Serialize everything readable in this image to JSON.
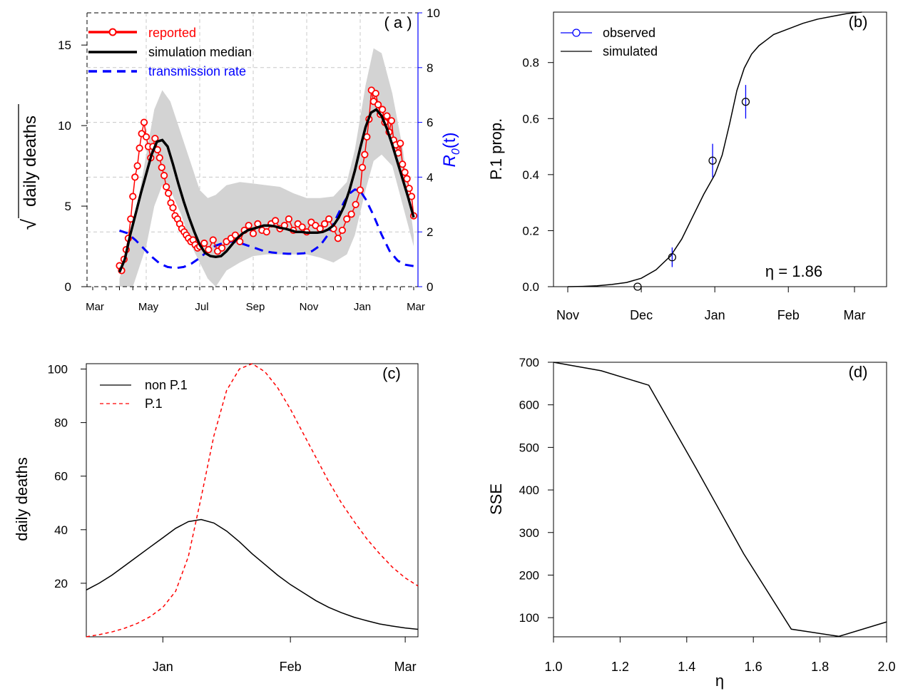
{
  "chart_data": [
    {
      "panel_label": "( a )",
      "type": "line",
      "title": "",
      "ylabel": "daily deaths",
      "ylabel_sqrt_symbol": "√",
      "y2label": "R₀(t)",
      "y2label_parts": {
        "base": "R",
        "sub": "0",
        "rest": "(t)"
      },
      "ylim": [
        0,
        17
      ],
      "y2lim": [
        0,
        10
      ],
      "x_month_range": [
        0,
        12
      ],
      "grid": true,
      "legend_position": "top-left",
      "x_ticks": [
        {
          "label": "Mar",
          "x": 0
        },
        {
          "label": "May",
          "x": 2
        },
        {
          "label": "Jul",
          "x": 4
        },
        {
          "label": "Sep",
          "x": 6
        },
        {
          "label": "Nov",
          "x": 8
        },
        {
          "label": "Jan",
          "x": 10
        },
        {
          "label": "Mar",
          "x": 12
        }
      ],
      "y_ticks": [
        0,
        5,
        10,
        15
      ],
      "y2_ticks": [
        0,
        2,
        4,
        6,
        8,
        10
      ],
      "legend": [
        {
          "label": "reported",
          "color": "#ff0000",
          "style": "line-points"
        },
        {
          "label": "simulation median",
          "color": "#000000",
          "style": "solid"
        },
        {
          "label": "transmission rate",
          "color": "#0000ff",
          "style": "dashed"
        }
      ],
      "series": [
        {
          "name": "simulation median",
          "axis": "left",
          "color": "#000000",
          "x": [
            1.0,
            1.2,
            1.4,
            1.6,
            1.8,
            2.0,
            2.2,
            2.4,
            2.6,
            2.8,
            3.0,
            3.2,
            3.4,
            3.6,
            3.8,
            4.0,
            4.2,
            4.4,
            4.6,
            4.8,
            5.0,
            5.2,
            5.4,
            5.6,
            5.8,
            6.0,
            6.2,
            6.4,
            6.6,
            6.8,
            7.0,
            7.2,
            7.4,
            7.6,
            7.8,
            8.0,
            8.2,
            8.4,
            8.6,
            8.8,
            9.0,
            9.2,
            9.4,
            9.6,
            9.8,
            10.0,
            10.2,
            10.4,
            10.6,
            10.8,
            11.0,
            11.2,
            11.4,
            11.6,
            11.8,
            12.0
          ],
          "values": [
            0.9,
            1.7,
            3.2,
            4.5,
            5.8,
            7.0,
            8.2,
            9.0,
            9.1,
            8.7,
            7.6,
            6.4,
            5.3,
            4.3,
            3.4,
            2.6,
            2.1,
            1.9,
            1.85,
            1.9,
            2.2,
            2.6,
            3.0,
            3.3,
            3.5,
            3.6,
            3.7,
            3.8,
            3.8,
            3.75,
            3.65,
            3.6,
            3.5,
            3.4,
            3.4,
            3.35,
            3.35,
            3.35,
            3.4,
            3.55,
            3.8,
            4.3,
            5.0,
            6.0,
            7.2,
            8.6,
            9.9,
            10.8,
            11.0,
            10.6,
            9.8,
            8.8,
            7.7,
            6.6,
            5.5,
            4.3
          ]
        },
        {
          "name": "transmission rate",
          "axis": "right",
          "color": "#0000ff",
          "x": [
            1.0,
            1.3,
            1.6,
            1.9,
            2.2,
            2.5,
            2.8,
            3.1,
            3.4,
            3.7,
            4.0,
            4.3,
            4.6,
            4.9,
            5.2,
            5.5,
            5.8,
            6.1,
            6.4,
            6.7,
            7.0,
            7.3,
            7.6,
            7.9,
            8.2,
            8.5,
            8.8,
            9.1,
            9.4,
            9.6,
            9.8,
            10.0,
            10.2,
            10.5,
            10.8,
            11.1,
            11.4,
            11.7,
            12.0
          ],
          "values": [
            2.05,
            1.95,
            1.7,
            1.4,
            1.1,
            0.85,
            0.72,
            0.68,
            0.72,
            0.85,
            1.05,
            1.3,
            1.5,
            1.6,
            1.65,
            1.6,
            1.5,
            1.4,
            1.3,
            1.25,
            1.22,
            1.2,
            1.2,
            1.22,
            1.3,
            1.5,
            1.9,
            2.5,
            3.1,
            3.4,
            3.55,
            3.5,
            3.2,
            2.6,
            1.9,
            1.3,
            0.95,
            0.8,
            0.75
          ]
        }
      ],
      "reported": {
        "color": "#ff0000",
        "x": [
          1.0,
          1.08,
          1.17,
          1.25,
          1.33,
          1.42,
          1.5,
          1.58,
          1.67,
          1.75,
          1.83,
          1.92,
          2.0,
          2.08,
          2.17,
          2.25,
          2.33,
          2.42,
          2.5,
          2.58,
          2.67,
          2.75,
          2.83,
          2.92,
          3.0,
          3.08,
          3.17,
          3.25,
          3.33,
          3.42,
          3.5,
          3.58,
          3.67,
          3.75,
          3.83,
          3.92,
          4.0,
          4.17,
          4.33,
          4.5,
          4.67,
          4.83,
          5.0,
          5.17,
          5.33,
          5.5,
          5.67,
          5.83,
          6.0,
          6.17,
          6.33,
          6.5,
          6.67,
          6.83,
          7.0,
          7.17,
          7.33,
          7.5,
          7.67,
          7.83,
          8.0,
          8.17,
          8.33,
          8.5,
          8.67,
          8.83,
          9.0,
          9.17,
          9.33,
          9.5,
          9.67,
          9.83,
          10.0,
          10.08,
          10.17,
          10.25,
          10.33,
          10.42,
          10.5,
          10.58,
          10.67,
          10.75,
          10.83,
          10.92,
          11.0,
          11.08,
          11.17,
          11.25,
          11.33,
          11.42,
          11.5,
          11.58,
          11.67,
          11.75,
          11.83,
          11.92,
          12.0
        ],
        "values": [
          1.3,
          1.0,
          1.7,
          2.3,
          3.0,
          4.2,
          5.6,
          6.8,
          7.5,
          8.6,
          9.5,
          10.2,
          9.3,
          8.7,
          8.0,
          8.7,
          9.2,
          8.5,
          8.0,
          7.4,
          6.9,
          6.2,
          5.8,
          5.2,
          4.9,
          4.4,
          4.2,
          3.9,
          3.6,
          3.4,
          3.2,
          3.0,
          2.8,
          2.9,
          2.6,
          2.4,
          2.5,
          2.7,
          2.3,
          2.9,
          2.2,
          2.4,
          2.8,
          3.0,
          3.2,
          2.8,
          3.5,
          3.8,
          3.3,
          3.9,
          3.5,
          3.4,
          3.9,
          4.1,
          3.6,
          3.8,
          4.2,
          3.5,
          3.9,
          3.7,
          3.4,
          4.0,
          3.8,
          3.6,
          3.9,
          4.2,
          3.6,
          3.0,
          3.5,
          4.2,
          4.5,
          5.1,
          6.0,
          7.4,
          8.2,
          9.3,
          10.4,
          12.2,
          11.5,
          12.0,
          11.3,
          10.7,
          11.0,
          10.2,
          10.6,
          9.6,
          10.3,
          9.1,
          8.8,
          8.3,
          8.9,
          7.6,
          7.1,
          6.7,
          6.1,
          5.6,
          4.4
        ]
      },
      "band": {
        "color": "#d3d3d3",
        "x": [
          1.0,
          1.5,
          2.0,
          2.3,
          2.6,
          2.9,
          3.3,
          3.7,
          4.0,
          4.3,
          4.6,
          5.0,
          5.5,
          6.0,
          6.5,
          7.0,
          7.5,
          8.0,
          8.5,
          9.0,
          9.5,
          9.8,
          10.2,
          10.5,
          10.8,
          11.2,
          11.6,
          12.0
        ],
        "upper": [
          0.5,
          3.5,
          8.2,
          11.0,
          12.2,
          11.5,
          9.5,
          7.5,
          6.0,
          5.5,
          5.7,
          6.3,
          6.5,
          6.4,
          6.3,
          6.2,
          5.8,
          5.5,
          5.5,
          5.6,
          6.5,
          8.5,
          12.5,
          14.8,
          14.5,
          12.0,
          8.5,
          3.2
        ],
        "lower": [
          0.0,
          0.0,
          2.5,
          5.0,
          6.3,
          6.0,
          4.5,
          2.5,
          1.5,
          0.5,
          0.0,
          1.0,
          1.5,
          1.9,
          2.0,
          2.0,
          2.0,
          2.0,
          1.8,
          1.5,
          2.0,
          3.2,
          6.0,
          7.8,
          8.2,
          7.5,
          5.0,
          2.5
        ]
      }
    },
    {
      "panel_label": "(b)",
      "type": "line",
      "title": "",
      "ylabel": "P.1 prop.",
      "xlabel": "",
      "x_month_range": [
        0,
        4.2
      ],
      "ylim": [
        0,
        0.98
      ],
      "grid": false,
      "legend_position": "top-left",
      "x_ticks": [
        {
          "label": "Nov",
          "x": 0
        },
        {
          "label": "Dec",
          "x": 1
        },
        {
          "label": "Jan",
          "x": 2
        },
        {
          "label": "Feb",
          "x": 3
        },
        {
          "label": "Mar",
          "x": 3.9
        }
      ],
      "y_ticks": [
        0.0,
        0.2,
        0.4,
        0.6,
        0.8
      ],
      "y_tick_labels": [
        "0.0",
        "0.2",
        "0.4",
        "0.6",
        "0.8"
      ],
      "annotation": "η = 1.86",
      "legend": [
        {
          "label": "observed",
          "color": "#0000ff",
          "style": "point-errorbar"
        },
        {
          "label": "simulated",
          "color": "#000000",
          "style": "solid"
        }
      ],
      "series": [
        {
          "name": "simulated",
          "color": "#000000",
          "x": [
            0.0,
            0.2,
            0.4,
            0.6,
            0.8,
            1.0,
            1.2,
            1.4,
            1.55,
            1.7,
            1.85,
            2.0,
            2.1,
            2.2,
            2.3,
            2.4,
            2.5,
            2.6,
            2.7,
            2.8,
            3.0,
            3.2,
            3.4,
            3.6,
            3.8,
            4.0
          ],
          "values": [
            0.0,
            0.001,
            0.003,
            0.008,
            0.015,
            0.03,
            0.06,
            0.11,
            0.17,
            0.25,
            0.33,
            0.4,
            0.47,
            0.58,
            0.7,
            0.78,
            0.83,
            0.86,
            0.88,
            0.9,
            0.92,
            0.94,
            0.955,
            0.965,
            0.975,
            0.98
          ]
        }
      ],
      "observed": [
        {
          "x": 0.95,
          "y": 0.0,
          "lo": 0.0,
          "hi": 0.0
        },
        {
          "x": 1.42,
          "y": 0.105,
          "lo": 0.07,
          "hi": 0.14
        },
        {
          "x": 1.97,
          "y": 0.45,
          "lo": 0.39,
          "hi": 0.51
        },
        {
          "x": 2.42,
          "y": 0.66,
          "lo": 0.6,
          "hi": 0.72
        }
      ]
    },
    {
      "panel_label": "(c)",
      "type": "line",
      "title": "",
      "ylabel": "daily deaths",
      "xlabel": "",
      "x_month_range": [
        -0.6,
        2.0
      ],
      "ylim": [
        0,
        102
      ],
      "grid": false,
      "legend_position": "top-left",
      "x_ticks": [
        {
          "label": "Jan",
          "x": 0
        },
        {
          "label": "Feb",
          "x": 1
        },
        {
          "label": "Mar",
          "x": 1.9
        }
      ],
      "y_ticks": [
        20,
        40,
        60,
        80,
        100
      ],
      "legend": [
        {
          "label": "non P.1",
          "color": "#000000",
          "style": "solid"
        },
        {
          "label": "P.1",
          "color": "#ff0000",
          "style": "dashed"
        }
      ],
      "series": [
        {
          "name": "non P.1",
          "color": "#000000",
          "x": [
            -0.6,
            -0.5,
            -0.4,
            -0.3,
            -0.2,
            -0.1,
            0.0,
            0.1,
            0.2,
            0.3,
            0.4,
            0.5,
            0.6,
            0.7,
            0.8,
            0.9,
            1.0,
            1.1,
            1.2,
            1.3,
            1.4,
            1.5,
            1.6,
            1.7,
            1.8,
            1.9,
            2.0
          ],
          "values": [
            17.5,
            20,
            23,
            26.5,
            30,
            33.5,
            37,
            40.5,
            43,
            43.8,
            42.5,
            39.5,
            35.5,
            31,
            27,
            23,
            19.5,
            16.5,
            13.5,
            11,
            9,
            7.3,
            6,
            4.8,
            4,
            3.3,
            2.8
          ]
        },
        {
          "name": "P.1",
          "color": "#ff0000",
          "x": [
            -0.6,
            -0.5,
            -0.4,
            -0.3,
            -0.2,
            -0.1,
            0.0,
            0.1,
            0.2,
            0.3,
            0.4,
            0.5,
            0.6,
            0.7,
            0.8,
            0.9,
            1.0,
            1.1,
            1.2,
            1.3,
            1.4,
            1.5,
            1.6,
            1.7,
            1.8,
            1.9,
            2.0
          ],
          "values": [
            0,
            0.8,
            1.8,
            3.2,
            5,
            7.5,
            11,
            17,
            30,
            52,
            75,
            92,
            100,
            102,
            99,
            93,
            85,
            76,
            67,
            58,
            50,
            43,
            36.5,
            31,
            26,
            22,
            19
          ]
        }
      ]
    },
    {
      "panel_label": "(d)",
      "type": "line",
      "title": "",
      "xlabel": "η",
      "ylabel": "SSE",
      "xlim": [
        1.0,
        2.0
      ],
      "ylim": [
        55,
        700
      ],
      "grid": false,
      "x_ticks": [
        1.0,
        1.2,
        1.4,
        1.6,
        1.8,
        2.0
      ],
      "x_tick_labels": [
        "1.0",
        "1.2",
        "1.4",
        "1.6",
        "1.8",
        "2.0"
      ],
      "y_ticks": [
        100,
        200,
        300,
        400,
        500,
        600,
        700
      ],
      "series": [
        {
          "name": "SSE",
          "color": "#000000",
          "x": [
            1.0,
            1.143,
            1.286,
            1.429,
            1.571,
            1.714,
            1.857,
            2.0
          ],
          "values": [
            700,
            680,
            646,
            450,
            250,
            73,
            56,
            90
          ]
        }
      ]
    }
  ]
}
